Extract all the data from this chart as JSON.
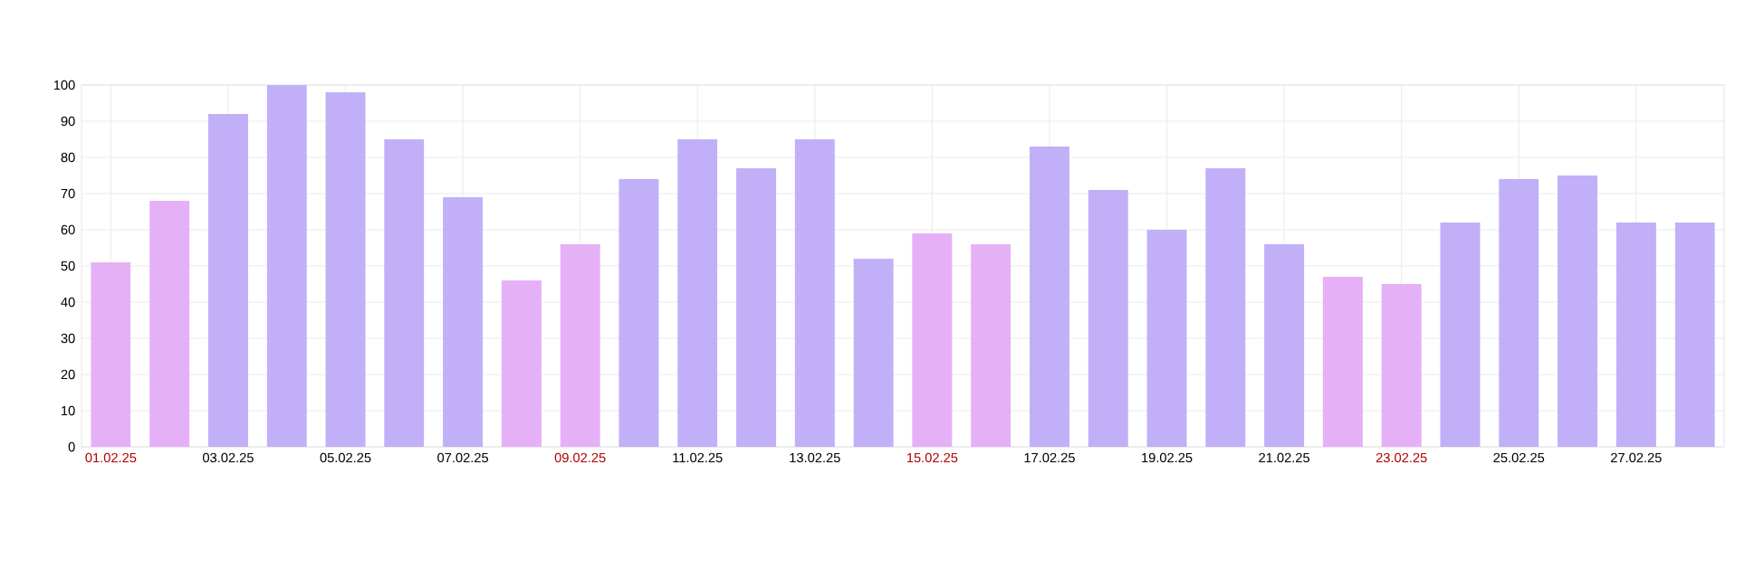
{
  "chart_data": {
    "type": "bar",
    "categories": [
      "01.02.25",
      null,
      "03.02.25",
      null,
      "05.02.25",
      null,
      "07.02.25",
      null,
      "09.02.25",
      null,
      "11.02.25",
      null,
      "13.02.25",
      null,
      "15.02.25",
      null,
      "17.02.25",
      null,
      "19.02.25",
      null,
      "21.02.25",
      null,
      "23.02.25",
      null,
      "25.02.25",
      null,
      "27.02.25",
      null
    ],
    "values": [
      51,
      68,
      92,
      100,
      98,
      85,
      69,
      46,
      56,
      74,
      85,
      77,
      85,
      52,
      59,
      56,
      83,
      71,
      60,
      77,
      56,
      47,
      45,
      62,
      74,
      75,
      62,
      62
    ],
    "colors": [
      "#e6b0f7",
      "#e6b0f7",
      "#c1b0f7",
      "#c1b0f7",
      "#c1b0f7",
      "#c1b0f7",
      "#c1b0f7",
      "#e6b0f7",
      "#e6b0f7",
      "#c1b0f7",
      "#c1b0f7",
      "#c1b0f7",
      "#c1b0f7",
      "#c1b0f7",
      "#e6b0f7",
      "#e6b0f7",
      "#c1b0f7",
      "#c1b0f7",
      "#c1b0f7",
      "#c1b0f7",
      "#c1b0f7",
      "#e6b0f7",
      "#e6b0f7",
      "#c1b0f7",
      "#c1b0f7",
      "#c1b0f7",
      "#c1b0f7",
      "#c1b0f7"
    ],
    "ylim": [
      0,
      100
    ],
    "yticks": [
      0,
      10,
      20,
      30,
      40,
      50,
      60,
      70,
      80,
      90,
      100
    ],
    "grid": true
  }
}
